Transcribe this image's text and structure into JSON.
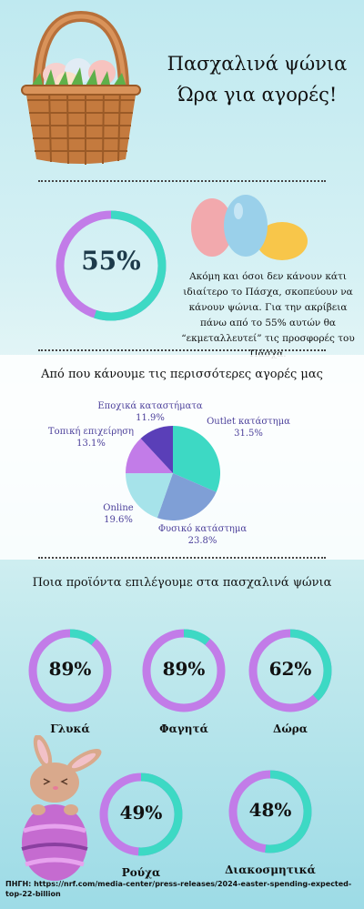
{
  "header": {
    "title_line1": "Πασχαλινά ψώνια",
    "title_line2": "Ώρα για αγορές!"
  },
  "stat": {
    "value_label": "55%",
    "value": 55,
    "description": "Ακόμη και όσοι δεν κάνουν κάτι ιδιαίτερο το Πάσχα, σκοπεύουν να κάνουν ψώνια. Για την ακρίβεια πάνω από το 55% αυτών θα “εκμεταλλευτεί” τις προσφορές του Πάσχα."
  },
  "colors": {
    "teal": "#3dd9c4",
    "purple": "#c27ce8",
    "pie_teal": "#3dd9c4",
    "pie_blue": "#7f9fd6",
    "pie_lightblue": "#a6e3ea",
    "pie_violet": "#c27ce8",
    "pie_indigo": "#5a3fb8"
  },
  "chart_data": [
    {
      "type": "pie",
      "title": "Από που κάνουμε τις περισσότερες αγορές μας",
      "slices": [
        {
          "label": "Outlet κατάστημα",
          "value": 31.5,
          "value_label": "31.5%",
          "color": "#3dd9c4"
        },
        {
          "label": "Φυσικό κατάστημα",
          "value": 23.8,
          "value_label": "23.8%",
          "color": "#7f9fd6"
        },
        {
          "label": "Online",
          "value": 19.6,
          "value_label": "19.6%",
          "color": "#a6e3ea"
        },
        {
          "label": "Τοπική επιχείρηση",
          "value": 13.1,
          "value_label": "13.1%",
          "color": "#c27ce8"
        },
        {
          "label": "Εποχικά καταστήματα",
          "value": 11.9,
          "value_label": "11.9%",
          "color": "#5a3fb8"
        }
      ]
    },
    {
      "type": "bar",
      "title": "Ποια προϊόντα επιλέγουμε στα πασχαλινά ψώνια",
      "items": [
        {
          "label": "Γλυκά",
          "value": 89,
          "value_label": "89%"
        },
        {
          "label": "Φαγητά",
          "value": 89,
          "value_label": "89%"
        },
        {
          "label": "Δώρα",
          "value": 62,
          "value_label": "62%"
        },
        {
          "label": "Ρούχα",
          "value": 49,
          "value_label": "49%"
        },
        {
          "label": "Διακοσμητικά",
          "value": 48,
          "value_label": "48%"
        }
      ]
    }
  ],
  "source": "ΠΗΓΗ: https://nrf.com/media-center/press-releases/2024-easter-spending-expected-top-22-billion",
  "icons": [
    "easter-basket-icon",
    "eggs-icon",
    "bunny-icon"
  ]
}
